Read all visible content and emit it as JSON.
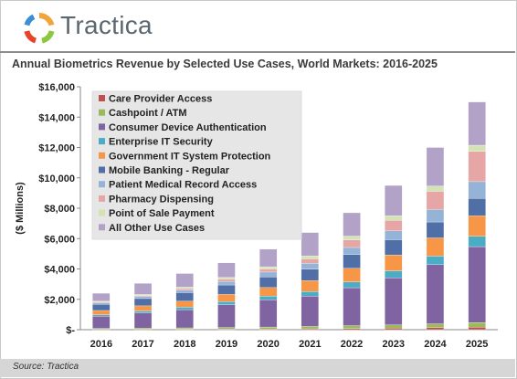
{
  "brand": {
    "name": "Tractica"
  },
  "source": "Source: Tractica",
  "chart_data": {
    "type": "bar",
    "stacked": true,
    "title": "Annual Biometrics Revenue by Selected Use Cases, World Markets: 2016-2025",
    "ylabel": "($ Millions)",
    "xlabel": "",
    "ylim": [
      0,
      16000
    ],
    "yticks": [
      0,
      2000,
      4000,
      6000,
      8000,
      10000,
      12000,
      14000,
      16000
    ],
    "ytick_labels": [
      "$-",
      "$2,000",
      "$4,000",
      "$6,000",
      "$8,000",
      "$10,000",
      "$12,000",
      "$14,000",
      "$16,000"
    ],
    "grid": false,
    "legend_position": "top-left",
    "categories": [
      "2016",
      "2017",
      "2018",
      "2019",
      "2020",
      "2021",
      "2022",
      "2023",
      "2024",
      "2025"
    ],
    "series": [
      {
        "name": "Care Provider Access",
        "color": "#c0504d",
        "values": [
          15,
          20,
          25,
          35,
          45,
          60,
          80,
          100,
          130,
          170
        ]
      },
      {
        "name": "Cashpoint / ATM",
        "color": "#9bbb59",
        "values": [
          70,
          80,
          95,
          110,
          130,
          155,
          185,
          215,
          255,
          300
        ]
      },
      {
        "name": "Consumer Device Authentication",
        "color": "#8064a2",
        "values": [
          800,
          1000,
          1200,
          1500,
          1800,
          2000,
          2500,
          3100,
          3900,
          5000
        ]
      },
      {
        "name": "Enterprise IT Security",
        "color": "#4bacc6",
        "values": [
          100,
          130,
          160,
          200,
          240,
          300,
          380,
          460,
          560,
          680
        ]
      },
      {
        "name": "Government IT System Protection",
        "color": "#f79646",
        "values": [
          280,
          340,
          400,
          480,
          560,
          720,
          900,
          1050,
          1200,
          1350
        ]
      },
      {
        "name": "Mobile Banking - Regular",
        "color": "#4f6fa6",
        "values": [
          400,
          480,
          560,
          620,
          700,
          750,
          900,
          1000,
          1050,
          1150
        ]
      },
      {
        "name": "Patient Medical Record Access",
        "color": "#95b3d7",
        "values": [
          100,
          130,
          170,
          240,
          320,
          380,
          470,
          580,
          820,
          1100
        ]
      },
      {
        "name": "Pharmacy Dispensing",
        "color": "#e6a6a6",
        "values": [
          50,
          70,
          100,
          150,
          200,
          300,
          500,
          700,
          1200,
          2000
        ]
      },
      {
        "name": "Point of Sale Payment",
        "color": "#d4e3b5",
        "values": [
          60,
          70,
          90,
          110,
          150,
          200,
          250,
          300,
          350,
          400
        ]
      },
      {
        "name": "All Other Use Cases",
        "color": "#b2a2c7",
        "values": [
          525,
          730,
          900,
          955,
          1155,
          1535,
          1535,
          1995,
          2535,
          2850
        ]
      }
    ]
  }
}
